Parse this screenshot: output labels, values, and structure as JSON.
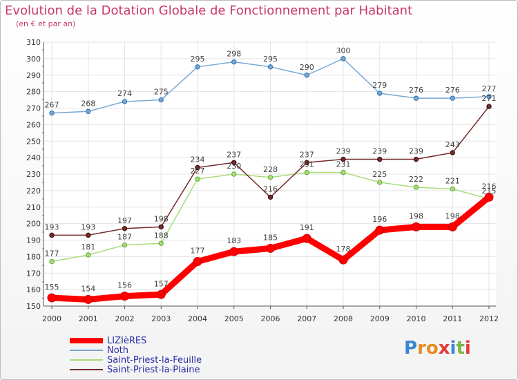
{
  "chart_data": {
    "type": "line",
    "title": "Evolution de la Dotation Globale de Fonctionnement par Habitant",
    "subtitle": "(en € et par an)",
    "xlabel": "",
    "ylabel": "",
    "ylim": [
      150,
      310
    ],
    "yticks": [
      150,
      160,
      170,
      180,
      190,
      200,
      210,
      220,
      230,
      240,
      250,
      260,
      270,
      280,
      290,
      300,
      310
    ],
    "categories": [
      "2000",
      "2001",
      "2002",
      "2003",
      "2004",
      "2005",
      "2006",
      "2007",
      "2008",
      "2009",
      "2010",
      "2011",
      "2012"
    ],
    "grid": true,
    "legend_position": "bottom-left",
    "series": [
      {
        "name": "LIZIèRES",
        "color": "#ff0000",
        "values": [
          155,
          154,
          156,
          157,
          177,
          183,
          185,
          191,
          178,
          196,
          198,
          198,
          216
        ]
      },
      {
        "name": "Noth",
        "color": "#78a8d4",
        "values": [
          267,
          268,
          274,
          275,
          295,
          298,
          295,
          290,
          300,
          279,
          276,
          276,
          277
        ]
      },
      {
        "name": "Saint-Priest-la-Feuille",
        "color": "#a6dc78",
        "values": [
          177,
          181,
          187,
          188,
          227,
          230,
          228,
          231,
          231,
          225,
          222,
          221,
          215
        ]
      },
      {
        "name": "Saint-Priest-la-Plaine",
        "color": "#742a2a",
        "values": [
          193,
          193,
          197,
          198,
          234,
          237,
          216,
          237,
          239,
          239,
          239,
          243,
          271
        ]
      }
    ]
  },
  "logo": {
    "text": "Proxiti",
    "letter_colors": [
      "#3a86d6",
      "#e98b1e",
      "#e98b1e",
      "#e43a3a",
      "#3a86d6",
      "#7ab648",
      "#e43a3a"
    ]
  }
}
